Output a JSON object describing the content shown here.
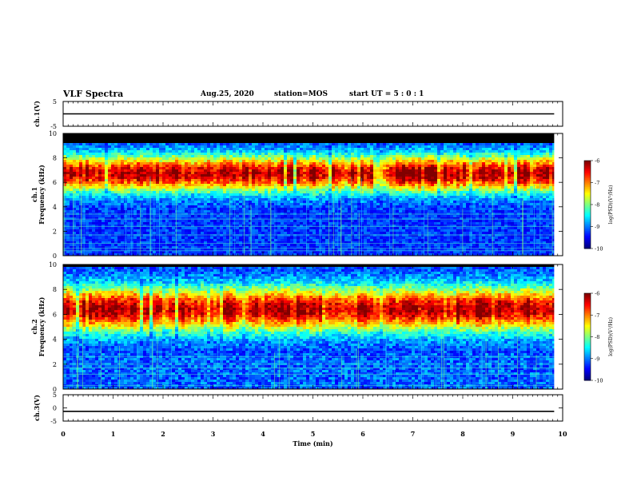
{
  "header": {
    "title": "VLF Spectra",
    "date": "Aug.25, 2020",
    "station": "station=MOS",
    "start": "start UT =  5 : 0 : 1"
  },
  "chart_data": [
    {
      "type": "line",
      "panel": "ch1-voltage",
      "ylabel": "ch.1(V)",
      "ylim": [
        -5,
        5
      ],
      "yticks": [
        "5",
        "-5"
      ],
      "series": [
        {
          "name": "ch.1",
          "x": [
            0,
            9.83
          ],
          "values": [
            0,
            0
          ]
        }
      ]
    },
    {
      "type": "heatmap",
      "panel": "ch1-spectrogram",
      "ylabel": "ch.1\nFrequency (kHz)",
      "ylim": [
        0,
        10
      ],
      "yticks": [
        "0",
        "2",
        "4",
        "6",
        "8",
        "10"
      ],
      "band_center_khz": 6.8,
      "colorbar": {
        "label": "log(PSD)(V²/Hz)",
        "ticks": [
          "-6",
          "-7",
          "-8",
          "-9",
          "-10"
        ],
        "range": [
          -10,
          -6
        ]
      }
    },
    {
      "type": "heatmap",
      "panel": "ch2-spectrogram",
      "ylabel": "ch.2\nFrequency (kHz)",
      "ylim": [
        0,
        10
      ],
      "yticks": [
        "0",
        "2",
        "4",
        "6",
        "8",
        "10"
      ],
      "band_center_khz": 6.5,
      "colorbar": {
        "label": "log(PSD)(V²/Hz)",
        "ticks": [
          "-6",
          "-7",
          "-8",
          "-9",
          "-10"
        ],
        "range": [
          -10,
          -6
        ]
      }
    },
    {
      "type": "line",
      "panel": "ch3-voltage",
      "ylabel": "ch.3(V)",
      "ylim": [
        -5,
        5
      ],
      "yticks": [
        "5",
        "0",
        "-5"
      ],
      "series": [
        {
          "name": "ch.3",
          "x": [
            0,
            9.83
          ],
          "values": [
            -1.3,
            -1.3
          ]
        }
      ]
    }
  ],
  "xaxis": {
    "label": "Time (min)",
    "range": [
      0,
      10
    ],
    "ticks": [
      "0",
      "1",
      "2",
      "3",
      "4",
      "5",
      "6",
      "7",
      "8",
      "9",
      "10"
    ]
  },
  "colors": {
    "signal_black": "#000000"
  }
}
